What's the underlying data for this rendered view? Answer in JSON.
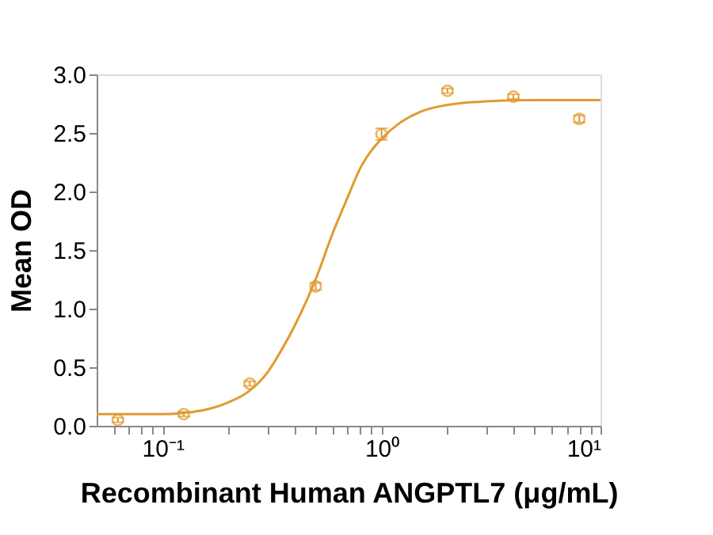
{
  "chart_data": {
    "type": "scatter",
    "xlabel": "Recombinant Human ANGPTL7 (μg/mL)",
    "ylabel": "Mean OD",
    "log": "x",
    "grid": false,
    "xlim": [
      0.05,
      10
    ],
    "ylim": [
      0,
      3
    ],
    "xticks": [
      {
        "value": 0.06,
        "label": null
      },
      {
        "value": 0.07,
        "label": null
      },
      {
        "value": 0.08,
        "label": null
      },
      {
        "value": 0.09,
        "label": null
      },
      {
        "value": 0.1,
        "label": "10⁻¹"
      },
      {
        "value": 0.2,
        "label": null
      },
      {
        "value": 0.3,
        "label": null
      },
      {
        "value": 0.4,
        "label": null
      },
      {
        "value": 0.5,
        "label": null
      },
      {
        "value": 0.6,
        "label": null
      },
      {
        "value": 0.7,
        "label": null
      },
      {
        "value": 0.8,
        "label": null
      },
      {
        "value": 0.9,
        "label": null
      },
      {
        "value": 1,
        "label": "10⁰"
      },
      {
        "value": 2,
        "label": null
      },
      {
        "value": 3,
        "label": null
      },
      {
        "value": 4,
        "label": null
      },
      {
        "value": 5,
        "label": null
      },
      {
        "value": 6,
        "label": null
      },
      {
        "value": 7,
        "label": null
      },
      {
        "value": 8,
        "label": null
      },
      {
        "value": 9,
        "label": null
      },
      {
        "value": 10,
        "label": "10¹"
      }
    ],
    "yticks": [
      {
        "value": 0,
        "label": "0.0"
      },
      {
        "value": 0.5,
        "label": "0.5"
      },
      {
        "value": 1,
        "label": "1.0"
      },
      {
        "value": 1.5,
        "label": "1.5"
      },
      {
        "value": 2,
        "label": "2.0"
      },
      {
        "value": 2.5,
        "label": "2.5"
      },
      {
        "value": 3,
        "label": "3.0"
      }
    ],
    "series": [
      {
        "marker": "circle",
        "color": "#e09a2e",
        "x": [
          0.0625,
          0.125,
          0.25,
          0.5,
          1,
          2,
          4,
          8
        ],
        "values": [
          0.05,
          0.1,
          0.36,
          1.19,
          2.49,
          2.86,
          2.81,
          2.62
        ],
        "errors": [
          0.02,
          0.02,
          0.02,
          0.03,
          0.05,
          0.02,
          0.02,
          0.03
        ]
      },
      {
        "type": "line",
        "marker": "none",
        "color": "#e09a2e",
        "x": [
          0.05,
          0.1,
          0.15,
          0.2,
          0.25,
          0.3,
          0.35,
          0.4,
          0.45,
          0.5,
          0.6,
          0.7,
          0.8,
          0.9,
          1.0,
          1.2,
          1.5,
          2,
          3,
          5,
          10
        ],
        "values": [
          0.1,
          0.1,
          0.13,
          0.2,
          0.3,
          0.45,
          0.65,
          0.85,
          1.05,
          1.25,
          1.65,
          1.95,
          2.2,
          2.35,
          2.45,
          2.58,
          2.68,
          2.74,
          2.77,
          2.78,
          2.78
        ]
      }
    ]
  }
}
